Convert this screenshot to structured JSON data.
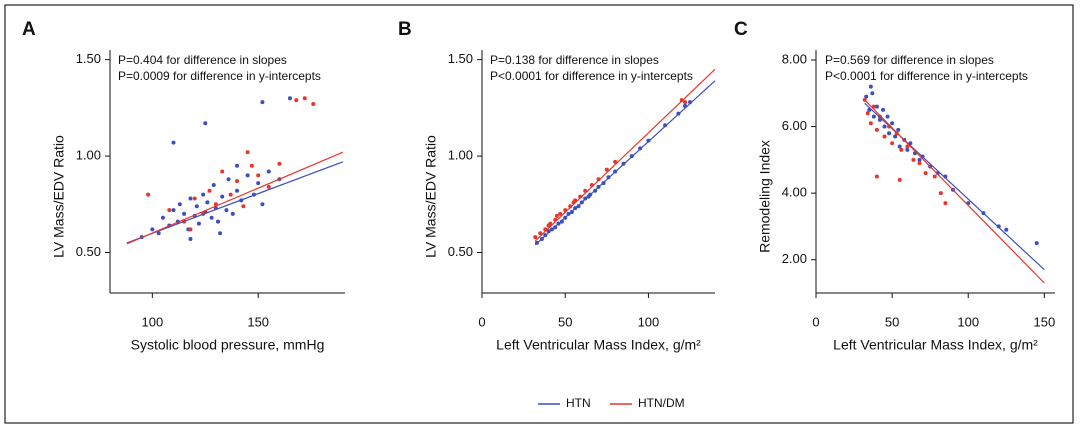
{
  "chart_data": [
    {
      "type": "scatter",
      "panel": "A",
      "annotations": [
        "P=0.404 for difference in slopes",
        "P=0.0009 for difference in y-intercepts"
      ],
      "xlabel": "Systolic blood pressure, mmHg",
      "ylabel": "LV Mass/EDV Ratio",
      "xlim": [
        80,
        191
      ],
      "xticks": [
        100,
        150
      ],
      "ylim": [
        0.29,
        1.55
      ],
      "yticks": [
        {
          "value": 0.5,
          "label": "0.50"
        },
        {
          "value": 1.0,
          "label": "1.00"
        },
        {
          "value": 1.5,
          "label": "1.50"
        }
      ],
      "series": [
        {
          "name": "HTN",
          "color": "#3a4fc1",
          "x": [
            95,
            100,
            103,
            105,
            108,
            110,
            112,
            113,
            115,
            117,
            118,
            120,
            121,
            122,
            124,
            125,
            126,
            128,
            129,
            130,
            131,
            133,
            135,
            136,
            138,
            140,
            142,
            145,
            148,
            150,
            152,
            155,
            160,
            110,
            125,
            152,
            165,
            140,
            132,
            118
          ],
          "values": [
            0.58,
            0.62,
            0.6,
            0.68,
            0.64,
            0.72,
            0.66,
            0.75,
            0.7,
            0.62,
            0.78,
            0.69,
            0.74,
            0.65,
            0.8,
            0.71,
            0.76,
            0.68,
            0.85,
            0.73,
            0.66,
            0.79,
            0.72,
            0.88,
            0.7,
            0.82,
            0.77,
            0.9,
            0.8,
            0.86,
            0.75,
            0.92,
            0.88,
            1.07,
            1.17,
            1.28,
            1.3,
            0.95,
            0.6,
            0.57
          ]
        },
        {
          "name": "HTN/DM",
          "color": "#e8362a",
          "x": [
            98,
            108,
            115,
            120,
            124,
            127,
            130,
            133,
            137,
            140,
            143,
            147,
            150,
            155,
            160,
            168,
            172,
            176,
            145,
            118
          ],
          "values": [
            0.8,
            0.72,
            0.66,
            0.78,
            0.7,
            0.82,
            0.75,
            0.92,
            0.8,
            0.87,
            0.74,
            0.95,
            0.9,
            0.84,
            0.96,
            1.29,
            1.3,
            1.27,
            1.02,
            0.62
          ]
        }
      ],
      "fits": [
        {
          "color": "#3a4fc1",
          "x": [
            88,
            190
          ],
          "values": [
            0.55,
            0.97
          ]
        },
        {
          "color": "#e8362a",
          "x": [
            88,
            190
          ],
          "values": [
            0.545,
            1.02
          ]
        }
      ]
    },
    {
      "type": "scatter",
      "panel": "B",
      "annotations": [
        "P=0.138 for difference in slopes",
        "P<0.0001 for difference in y-intercepts"
      ],
      "xlabel": "Left Ventricular Mass Index, g/m²",
      "ylabel": "LV Mass/EDV Ratio",
      "xlim": [
        0,
        140
      ],
      "xticks": [
        0,
        50,
        100
      ],
      "ylim": [
        0.29,
        1.55
      ],
      "yticks": [
        {
          "value": 0.5,
          "label": "0.50"
        },
        {
          "value": 1.0,
          "label": "1.00"
        },
        {
          "value": 1.5,
          "label": "1.50"
        }
      ],
      "series": [
        {
          "color": "#3a4fc1",
          "x": [
            33,
            36,
            38,
            40,
            42,
            44,
            46,
            48,
            50,
            52,
            54,
            56,
            58,
            60,
            62,
            65,
            68,
            70,
            73,
            76,
            80,
            85,
            90,
            95,
            100,
            110,
            118,
            122,
            125,
            64
          ],
          "values": [
            0.55,
            0.57,
            0.59,
            0.61,
            0.62,
            0.63,
            0.65,
            0.66,
            0.68,
            0.7,
            0.71,
            0.73,
            0.74,
            0.76,
            0.78,
            0.8,
            0.82,
            0.84,
            0.86,
            0.89,
            0.92,
            0.96,
            1.0,
            1.04,
            1.08,
            1.16,
            1.22,
            1.26,
            1.28,
            0.79
          ]
        },
        {
          "color": "#e8362a",
          "x": [
            32,
            35,
            38,
            41,
            44,
            47,
            50,
            53,
            56,
            59,
            62,
            66,
            70,
            75,
            80,
            45,
            55,
            120,
            122,
            40
          ],
          "values": [
            0.58,
            0.6,
            0.62,
            0.65,
            0.67,
            0.7,
            0.72,
            0.74,
            0.77,
            0.79,
            0.82,
            0.85,
            0.88,
            0.93,
            0.97,
            0.69,
            0.76,
            1.29,
            1.28,
            0.64
          ]
        }
      ],
      "fits": [
        {
          "color": "#3a4fc1",
          "x": [
            32,
            140
          ],
          "values": [
            0.54,
            1.39
          ]
        },
        {
          "color": "#e8362a",
          "x": [
            32,
            140
          ],
          "values": [
            0.56,
            1.45
          ]
        }
      ]
    },
    {
      "type": "scatter",
      "panel": "C",
      "annotations": [
        "P=0.569 for difference in slopes",
        "P<0.0001 for difference in y-intercepts"
      ],
      "xlabel": "Left Ventricular Mass Index, g/m²",
      "ylabel": "Remodeling Index",
      "xlim": [
        0,
        157
      ],
      "xticks": [
        0,
        50,
        100,
        150
      ],
      "ylim": [
        1.0,
        8.3
      ],
      "yticks": [
        {
          "value": 2,
          "label": "2.00"
        },
        {
          "value": 4,
          "label": "4.00"
        },
        {
          "value": 6,
          "label": "6.00"
        },
        {
          "value": 8,
          "label": "8.00"
        }
      ],
      "series": [
        {
          "color": "#3a4fc1",
          "x": [
            33,
            35,
            37,
            38,
            40,
            42,
            44,
            45,
            47,
            48,
            50,
            52,
            54,
            55,
            58,
            60,
            62,
            65,
            68,
            70,
            75,
            80,
            85,
            90,
            100,
            110,
            120,
            125,
            145,
            36
          ],
          "values": [
            6.9,
            6.5,
            7.0,
            6.3,
            6.6,
            6.2,
            6.5,
            6.0,
            6.3,
            5.8,
            6.1,
            5.7,
            5.9,
            5.4,
            5.6,
            5.3,
            5.5,
            5.2,
            5.0,
            5.1,
            4.8,
            4.6,
            4.5,
            4.1,
            3.7,
            3.4,
            3.0,
            2.9,
            2.5,
            7.2
          ]
        },
        {
          "color": "#e8362a",
          "x": [
            32,
            34,
            36,
            38,
            40,
            42,
            45,
            48,
            50,
            53,
            56,
            60,
            64,
            68,
            72,
            78,
            82,
            85,
            40,
            55
          ],
          "values": [
            6.8,
            6.4,
            6.1,
            6.6,
            5.9,
            6.3,
            5.7,
            6.0,
            5.5,
            5.8,
            5.3,
            5.4,
            5.0,
            4.9,
            4.6,
            4.5,
            4.0,
            3.7,
            4.5,
            4.4
          ]
        }
      ],
      "fits": [
        {
          "color": "#3a4fc1",
          "x": [
            32,
            150
          ],
          "values": [
            6.7,
            1.7
          ]
        },
        {
          "color": "#e8362a",
          "x": [
            32,
            150
          ],
          "values": [
            6.8,
            1.3
          ]
        }
      ]
    }
  ]
}
